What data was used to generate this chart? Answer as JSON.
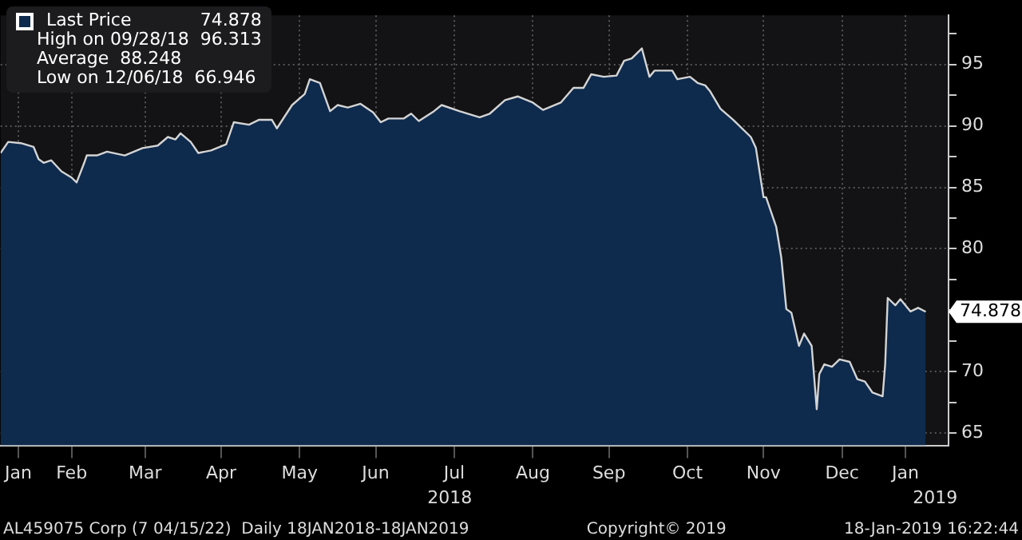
{
  "chart_data": {
    "type": "area",
    "title": "AL459075 Corp (7 04/15/22)  Daily 18JAN2018-18JAN2019",
    "x": [
      "2018-01-18",
      "2018-01-21",
      "2018-01-26",
      "2018-01-31",
      "2018-02-02",
      "2018-02-04",
      "2018-02-07",
      "2018-02-11",
      "2018-02-15",
      "2018-02-17",
      "2018-02-20",
      "2018-02-21",
      "2018-02-25",
      "2018-03-01",
      "2018-03-08",
      "2018-03-15",
      "2018-03-21",
      "2018-03-25",
      "2018-03-28",
      "2018-03-30",
      "2018-04-03",
      "2018-04-06",
      "2018-04-11",
      "2018-04-17",
      "2018-04-20",
      "2018-04-26",
      "2018-04-30",
      "2018-05-05",
      "2018-05-07",
      "2018-05-13",
      "2018-05-18",
      "2018-05-20",
      "2018-05-24",
      "2018-05-28",
      "2018-05-31",
      "2018-06-04",
      "2018-06-09",
      "2018-06-14",
      "2018-06-17",
      "2018-06-20",
      "2018-06-26",
      "2018-06-29",
      "2018-07-02",
      "2018-07-08",
      "2018-07-11",
      "2018-07-18",
      "2018-07-26",
      "2018-07-30",
      "2018-08-05",
      "2018-08-10",
      "2018-08-16",
      "2018-08-20",
      "2018-08-27",
      "2018-09-01",
      "2018-09-05",
      "2018-09-08",
      "2018-09-13",
      "2018-09-18",
      "2018-09-21",
      "2018-09-24",
      "2018-09-28",
      "2018-10-01",
      "2018-10-03",
      "2018-10-10",
      "2018-10-12",
      "2018-10-17",
      "2018-10-20",
      "2018-10-23",
      "2018-10-25",
      "2018-10-29",
      "2018-11-03",
      "2018-11-10",
      "2018-11-12",
      "2018-11-15",
      "2018-11-16",
      "2018-11-18",
      "2018-11-20",
      "2018-11-22",
      "2018-11-24",
      "2018-11-26",
      "2018-11-29",
      "2018-12-01",
      "2018-12-04",
      "2018-12-06",
      "2018-12-07",
      "2018-12-09",
      "2018-12-12",
      "2018-12-15",
      "2018-12-19",
      "2018-12-22",
      "2018-12-25",
      "2018-12-28",
      "2019-01-01",
      "2019-01-02",
      "2019-01-03",
      "2019-01-06",
      "2019-01-08",
      "2019-01-12",
      "2019-01-15",
      "2019-01-18"
    ],
    "series": [
      {
        "name": "Last Price",
        "color": "#0e2a4d",
        "values": [
          87.8,
          88.7,
          88.6,
          88.3,
          87.3,
          87.0,
          87.2,
          86.3,
          85.8,
          85.4,
          87.0,
          87.6,
          87.6,
          87.9,
          87.6,
          88.2,
          88.4,
          89.1,
          88.9,
          89.4,
          88.7,
          87.8,
          88.0,
          88.5,
          90.3,
          90.1,
          90.5,
          90.5,
          89.8,
          91.7,
          92.6,
          93.8,
          93.5,
          91.2,
          91.7,
          91.5,
          91.8,
          91.1,
          90.3,
          90.6,
          90.6,
          91.0,
          90.4,
          91.2,
          91.7,
          91.2,
          90.7,
          91.0,
          92.1,
          92.4,
          91.9,
          91.3,
          91.9,
          93.1,
          93.1,
          94.2,
          94.0,
          94.1,
          95.3,
          95.5,
          96.313,
          94.0,
          94.5,
          94.5,
          93.8,
          94.0,
          93.5,
          93.3,
          92.8,
          91.4,
          90.5,
          89.1,
          88.2,
          84.2,
          84.2,
          83.0,
          81.8,
          79.3,
          75.1,
          74.8,
          72.1,
          73.1,
          72.1,
          66.946,
          69.8,
          70.6,
          70.4,
          71.0,
          70.8,
          69.4,
          69.2,
          68.3,
          68.0,
          70.6,
          76.0,
          75.4,
          75.9,
          74.9,
          75.2,
          74.878
        ]
      }
    ],
    "xlim": [
      "2018-01-18",
      "2019-01-27"
    ],
    "xticks": [
      {
        "value": "2018-01-25",
        "label": "Jan"
      },
      {
        "value": "2018-02-15",
        "label": "Feb"
      },
      {
        "value": "2018-03-16",
        "label": "Mar"
      },
      {
        "value": "2018-04-15",
        "label": "Apr"
      },
      {
        "value": "2018-05-16",
        "label": "May"
      },
      {
        "value": "2018-06-15",
        "label": "Jun"
      },
      {
        "value": "2018-07-16",
        "label": "Jul"
      },
      {
        "value": "2018-08-16",
        "label": "Aug"
      },
      {
        "value": "2018-09-15",
        "label": "Sep"
      },
      {
        "value": "2018-10-16",
        "label": "Oct"
      },
      {
        "value": "2018-11-15",
        "label": "Nov"
      },
      {
        "value": "2018-12-16",
        "label": "Dec"
      },
      {
        "value": "2019-01-10",
        "label": "Jan"
      }
    ],
    "ylim": [
      64,
      99
    ],
    "yticks": [
      65,
      {
        "value": 67.5,
        "label": null
      },
      70,
      {
        "value": 72.5,
        "label": null
      },
      {
        "value": 75,
        "label": null
      },
      {
        "value": 77.5,
        "label": null
      },
      80,
      {
        "value": 82.5,
        "label": null
      },
      85,
      {
        "value": 87.5,
        "label": null
      },
      90,
      {
        "value": 92.5,
        "label": null
      },
      95,
      {
        "value": 97.5,
        "label": null
      }
    ],
    "grid": true,
    "legend": "top left",
    "annotations": [
      "High on 09/28/18  96.313",
      "Average  88.248",
      "Low on 12/06/18  66.946",
      "Copyright© 2019",
      "18-Jan-2019 16:22:44",
      "2018",
      "2019",
      {
        "text": "74.878",
        "x": "2019-01-18",
        "y": 74.878
      }
    ]
  }
}
